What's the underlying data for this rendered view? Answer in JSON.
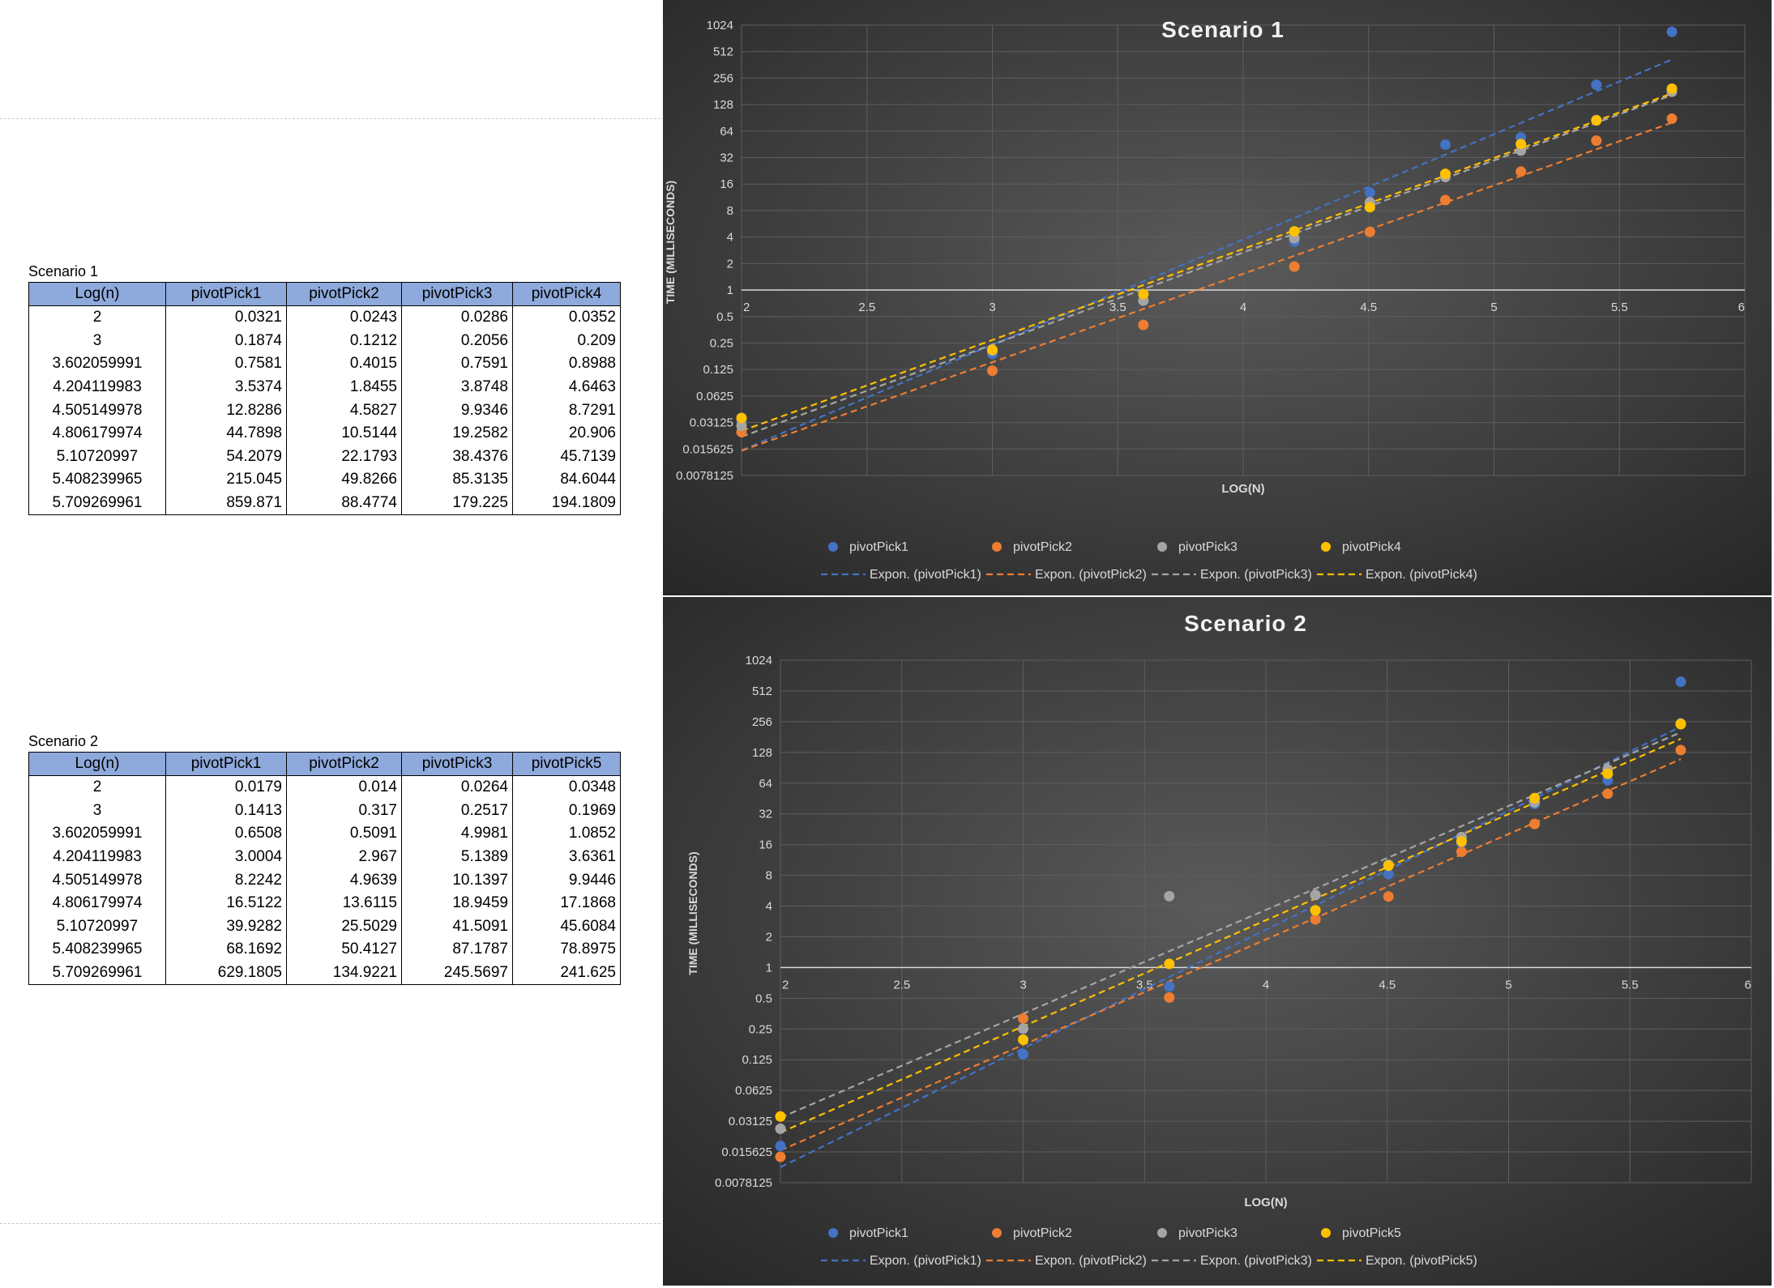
{
  "tables": [
    {
      "caption": "Scenario 1",
      "headers": [
        "Log(n)",
        "pivotPick1",
        "pivotPick2",
        "pivotPick3",
        "pivotPick4"
      ],
      "rows": [
        [
          "2",
          "0.0321",
          "0.0243",
          "0.0286",
          "0.0352"
        ],
        [
          "3",
          "0.1874",
          "0.1212",
          "0.2056",
          "0.209"
        ],
        [
          "3.602059991",
          "0.7581",
          "0.4015",
          "0.7591",
          "0.8988"
        ],
        [
          "4.204119983",
          "3.5374",
          "1.8455",
          "3.8748",
          "4.6463"
        ],
        [
          "4.505149978",
          "12.8286",
          "4.5827",
          "9.9346",
          "8.7291"
        ],
        [
          "4.806179974",
          "44.7898",
          "10.5144",
          "19.2582",
          "20.906"
        ],
        [
          "5.10720997",
          "54.2079",
          "22.1793",
          "38.4376",
          "45.7139"
        ],
        [
          "5.408239965",
          "215.045",
          "49.8266",
          "85.3135",
          "84.6044"
        ],
        [
          "5.709269961",
          "859.871",
          "88.4774",
          "179.225",
          "194.1809"
        ]
      ]
    },
    {
      "caption": "Scenario 2",
      "headers": [
        "Log(n)",
        "pivotPick1",
        "pivotPick2",
        "pivotPick3",
        "pivotPick5"
      ],
      "rows": [
        [
          "2",
          "0.0179",
          "0.014",
          "0.0264",
          "0.0348"
        ],
        [
          "3",
          "0.1413",
          "0.317",
          "0.2517",
          "0.1969"
        ],
        [
          "3.602059991",
          "0.6508",
          "0.5091",
          "4.9981",
          "1.0852"
        ],
        [
          "4.204119983",
          "3.0004",
          "2.967",
          "5.1389",
          "3.6361"
        ],
        [
          "4.505149978",
          "8.2242",
          "4.9639",
          "10.1397",
          "9.9446"
        ],
        [
          "4.806179974",
          "16.5122",
          "13.6115",
          "18.9459",
          "17.1868"
        ],
        [
          "5.10720997",
          "39.9282",
          "25.5029",
          "41.5091",
          "45.6084"
        ],
        [
          "5.408239965",
          "68.1692",
          "50.4127",
          "87.1787",
          "78.8975"
        ],
        [
          "5.709269961",
          "629.1805",
          "134.9221",
          "245.5697",
          "241.625"
        ]
      ]
    }
  ],
  "chart_data": [
    {
      "type": "scatter",
      "title": "Scenario 1",
      "xlabel": "LOG(N)",
      "ylabel": "TIME (MILLISECONDS)",
      "xlim": [
        2,
        6
      ],
      "ylim": [
        0.0078125,
        1024
      ],
      "y_scale": "log2",
      "x_ticks": [
        "2",
        "2.5",
        "3",
        "3.5",
        "4",
        "4.5",
        "5",
        "5.5",
        "6"
      ],
      "y_ticks": [
        "1024",
        "512",
        "256",
        "128",
        "64",
        "32",
        "16",
        "8",
        "4",
        "2",
        "1",
        "0.5",
        "0.25",
        "0.125",
        "0.0625",
        "0.03125",
        "0.015625",
        "0.0078125"
      ],
      "grid": true,
      "legend_position": "bottom",
      "trendline": "exponential",
      "x": [
        2,
        3,
        3.602059991,
        4.204119983,
        4.505149978,
        4.806179974,
        5.10720997,
        5.408239965,
        5.709269961
      ],
      "series": [
        {
          "name": "pivotPick1",
          "trend_name": "Expon. (pivotPick1)",
          "color": "#4472c4",
          "values": [
            0.0321,
            0.1874,
            0.7581,
            3.5374,
            12.8286,
            44.7898,
            54.2079,
            215.045,
            859.871
          ]
        },
        {
          "name": "pivotPick2",
          "trend_name": "Expon. (pivotPick2)",
          "color": "#ed7d31",
          "values": [
            0.0243,
            0.1212,
            0.4015,
            1.8455,
            4.5827,
            10.5144,
            22.1793,
            49.8266,
            88.4774
          ]
        },
        {
          "name": "pivotPick3",
          "trend_name": "Expon. (pivotPick3)",
          "color": "#a5a5a5",
          "values": [
            0.0286,
            0.2056,
            0.7591,
            3.8748,
            9.9346,
            19.2582,
            38.4376,
            85.3135,
            179.225
          ]
        },
        {
          "name": "pivotPick4",
          "trend_name": "Expon. (pivotPick4)",
          "color": "#ffc000",
          "values": [
            0.0352,
            0.209,
            0.8988,
            4.6463,
            8.7291,
            20.906,
            45.7139,
            84.6044,
            194.1809
          ]
        }
      ]
    },
    {
      "type": "scatter",
      "title": "Scenario 2",
      "xlabel": "LOG(N)",
      "ylabel": "TIME (MILLISECONDS)",
      "xlim": [
        2,
        6
      ],
      "ylim": [
        0.0078125,
        1024
      ],
      "y_scale": "log2",
      "x_ticks": [
        "2",
        "2.5",
        "3",
        "3.5",
        "4",
        "4.5",
        "5",
        "5.5",
        "6"
      ],
      "y_ticks": [
        "1024",
        "512",
        "256",
        "128",
        "64",
        "32",
        "16",
        "8",
        "4",
        "2",
        "1",
        "0.5",
        "0.25",
        "0.125",
        "0.0625",
        "0.03125",
        "0.015625",
        "0.0078125"
      ],
      "grid": true,
      "legend_position": "bottom",
      "trendline": "exponential",
      "x": [
        2,
        3,
        3.602059991,
        4.204119983,
        4.505149978,
        4.806179974,
        5.10720997,
        5.408239965,
        5.709269961
      ],
      "series": [
        {
          "name": "pivotPick1",
          "trend_name": "Expon. (pivotPick1)",
          "color": "#4472c4",
          "values": [
            0.0179,
            0.1413,
            0.6508,
            3.0004,
            8.2242,
            16.5122,
            39.9282,
            68.1692,
            629.1805
          ]
        },
        {
          "name": "pivotPick2",
          "trend_name": "Expon. (pivotPick2)",
          "color": "#ed7d31",
          "values": [
            0.014,
            0.317,
            0.5091,
            2.967,
            4.9639,
            13.6115,
            25.5029,
            50.4127,
            134.9221
          ]
        },
        {
          "name": "pivotPick3",
          "trend_name": "Expon. (pivotPick3)",
          "color": "#a5a5a5",
          "values": [
            0.0264,
            0.2517,
            4.9981,
            5.1389,
            10.1397,
            18.9459,
            41.5091,
            87.1787,
            245.5697
          ]
        },
        {
          "name": "pivotPick5",
          "trend_name": "Expon. (pivotPick5)",
          "color": "#ffc000",
          "values": [
            0.0348,
            0.1969,
            1.0852,
            3.6361,
            9.9446,
            17.1868,
            45.6084,
            78.8975,
            241.625
          ]
        }
      ]
    }
  ]
}
